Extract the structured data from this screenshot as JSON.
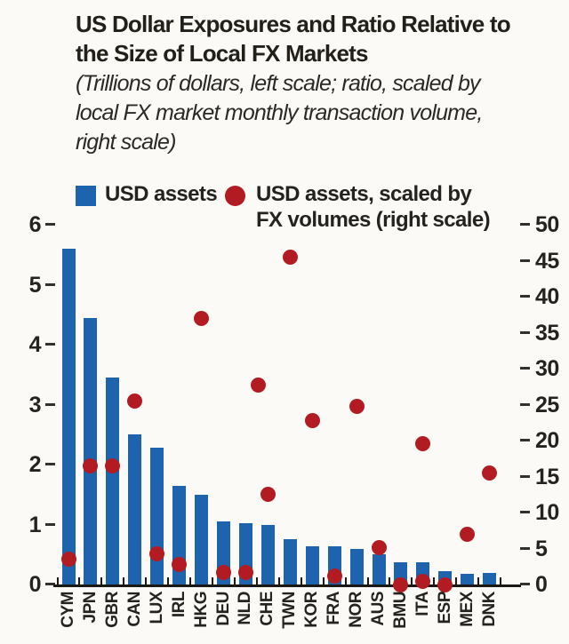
{
  "header": {
    "title_lines": [
      "US Dollar Exposures and Ratio Relative to",
      "the Size of Local FX Markets"
    ],
    "subtitle_lines": [
      "(Trillions of dollars, left scale; ratio, scaled by",
      "local FX market monthly transaction volume,",
      "right scale)"
    ]
  },
  "legend": {
    "bars_label": "USD assets",
    "dots_label_lines": [
      "USD assets, scaled by",
      "FX volumes (right scale)"
    ],
    "bar_color": "#1d63ae",
    "dot_color": "#b31b22"
  },
  "chart_data": {
    "type": "bar",
    "subtype": "dual-axis bar + scatter",
    "title": "US Dollar Exposures and Ratio Relative to the Size of Local FX Markets",
    "xlabel": "",
    "ylabel_left": "Trillions of dollars",
    "ylabel_right": "Ratio, scaled by local FX market monthly transaction volume",
    "categories": [
      "CYM",
      "JPN",
      "GBR",
      "CAN",
      "LUX",
      "IRL",
      "HKG",
      "DEU",
      "NLD",
      "CHE",
      "TWN",
      "KOR",
      "FRA",
      "NOR",
      "AUS",
      "BMU",
      "ITA",
      "ESP",
      "MEX",
      "DNK"
    ],
    "series": [
      {
        "name": "USD assets",
        "type": "bar",
        "axis": "left",
        "color": "#1d63ae",
        "values": [
          5.6,
          4.45,
          3.45,
          2.5,
          2.28,
          1.65,
          1.5,
          1.05,
          1.02,
          1.0,
          0.75,
          0.63,
          0.63,
          0.6,
          0.5,
          0.37,
          0.37,
          0.22,
          0.18,
          0.19
        ]
      },
      {
        "name": "USD assets, scaled by FX volumes (right scale)",
        "type": "scatter",
        "axis": "right",
        "color": "#b31b22",
        "values": [
          3.5,
          16.5,
          16.5,
          25.5,
          4.2,
          2.8,
          37.0,
          1.7,
          1.7,
          12.5,
          45.5,
          22.8,
          1.2,
          24.8,
          5.1,
          0.0,
          19.6,
          0.0,
          7.0,
          15.5
        ]
      }
    ],
    "extra_dots": [
      {
        "slot": 8.58,
        "value": 27.7,
        "note": "dot rendered between NLD and CHE"
      },
      {
        "slot": 16,
        "value": 0.4,
        "note": "second dot at base of ITA column"
      }
    ],
    "left_axis": {
      "range": [
        0,
        6
      ],
      "ticks": [
        6,
        5,
        4,
        3,
        2,
        1,
        0
      ]
    },
    "right_axis": {
      "range": [
        0,
        50
      ],
      "ticks": [
        50,
        45,
        40,
        35,
        30,
        25,
        20,
        15,
        10,
        5,
        0
      ]
    },
    "grid": false,
    "legend_position": "top"
  }
}
